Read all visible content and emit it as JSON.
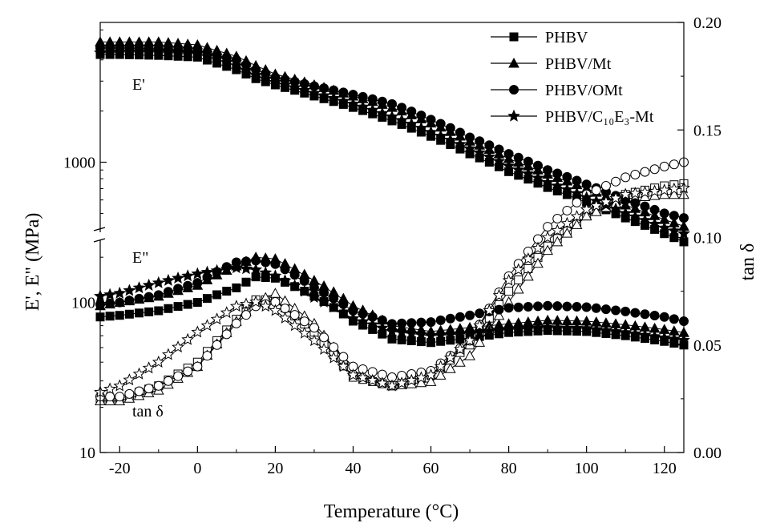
{
  "chart_data": {
    "type": "line",
    "xlabel": "Temperature (°C)",
    "ylabel_left": "E', E\" (MPa)",
    "ylabel_right": "tan δ",
    "xlim": [
      -25,
      125
    ],
    "xticks": [
      "-20",
      "0",
      "20",
      "40",
      "60",
      "80",
      "100",
      "120"
    ],
    "left_axis": {
      "scale": "log",
      "broken": true,
      "lower_range": [
        10,
        250
      ],
      "upper_range": [
        400,
        6500
      ],
      "ticks": [
        "10",
        "100",
        "1000"
      ]
    },
    "right_axis": {
      "scale": "linear",
      "ylim": [
        0.0,
        0.2
      ],
      "ticks": [
        "0.00",
        "0.05",
        "0.10",
        "0.15",
        "0.20"
      ]
    },
    "annotations": [
      "E'",
      "E\"",
      "tan δ"
    ],
    "legend": {
      "position": "top-right",
      "entries": [
        "PHBV",
        "PHBV/Mt",
        "PHBV/OMt",
        "PHBV/C₁₀E₃-Mt"
      ]
    },
    "x": [
      -25,
      -20,
      -10,
      0,
      10,
      15,
      20,
      30,
      40,
      50,
      60,
      70,
      80,
      90,
      100,
      110,
      120,
      125
    ],
    "series": [
      {
        "name": "PHBV",
        "marker": "square",
        "E_storage": [
          4300,
          4300,
          4250,
          4150,
          3500,
          3100,
          2850,
          2450,
          2100,
          1750,
          1420,
          1120,
          880,
          710,
          580,
          470,
          380,
          340
        ],
        "E_loss": [
          80,
          82,
          88,
          100,
          125,
          148,
          145,
          110,
          75,
          57,
          54,
          58,
          63,
          65,
          64,
          60,
          55,
          52
        ],
        "tan_delta": [
          0.025,
          0.025,
          0.031,
          0.042,
          0.062,
          0.071,
          0.071,
          0.056,
          0.035,
          0.031,
          0.036,
          0.05,
          0.075,
          0.096,
          0.11,
          0.12,
          0.124,
          0.125
        ]
      },
      {
        "name": "PHBV/Mt",
        "marker": "triangle",
        "E_storage": [
          5100,
          5100,
          5100,
          4900,
          4200,
          3700,
          3300,
          2850,
          2450,
          2100,
          1700,
          1330,
          1050,
          850,
          700,
          560,
          460,
          420
        ],
        "E_loss": [
          95,
          100,
          110,
          130,
          175,
          200,
          195,
          140,
          95,
          70,
          64,
          68,
          72,
          76,
          75,
          71,
          66,
          63
        ],
        "tan_delta": [
          0.024,
          0.024,
          0.029,
          0.04,
          0.061,
          0.07,
          0.074,
          0.06,
          0.038,
          0.031,
          0.033,
          0.045,
          0.07,
          0.094,
          0.11,
          0.118,
          0.12,
          0.12
        ]
      },
      {
        "name": "PHBV/OMt",
        "marker": "circle",
        "E_storage": [
          4700,
          4700,
          4650,
          4500,
          4000,
          3500,
          3150,
          2800,
          2500,
          2200,
          1780,
          1400,
          1120,
          900,
          740,
          600,
          500,
          470
        ],
        "E_loss": [
          97,
          100,
          112,
          135,
          185,
          190,
          180,
          125,
          88,
          72,
          74,
          82,
          92,
          95,
          93,
          87,
          80,
          75
        ],
        "tan_delta": [
          0.026,
          0.026,
          0.031,
          0.04,
          0.06,
          0.068,
          0.07,
          0.058,
          0.04,
          0.035,
          0.038,
          0.052,
          0.082,
          0.105,
          0.12,
          0.128,
          0.133,
          0.135
        ]
      },
      {
        "name": "PHBV/C₁₀E₃-Mt",
        "marker": "star",
        "E_storage": [
          4400,
          4450,
          4450,
          4350,
          3700,
          3250,
          2950,
          2550,
          2200,
          1850,
          1500,
          1200,
          950,
          760,
          620,
          500,
          410,
          380
        ],
        "E_loss": [
          110,
          115,
          135,
          155,
          170,
          165,
          150,
          108,
          78,
          64,
          60,
          62,
          66,
          68,
          67,
          63,
          58,
          56
        ],
        "tan_delta": [
          0.028,
          0.031,
          0.042,
          0.056,
          0.068,
          0.07,
          0.066,
          0.052,
          0.036,
          0.031,
          0.036,
          0.052,
          0.08,
          0.1,
          0.113,
          0.12,
          0.122,
          0.123
        ]
      }
    ]
  }
}
